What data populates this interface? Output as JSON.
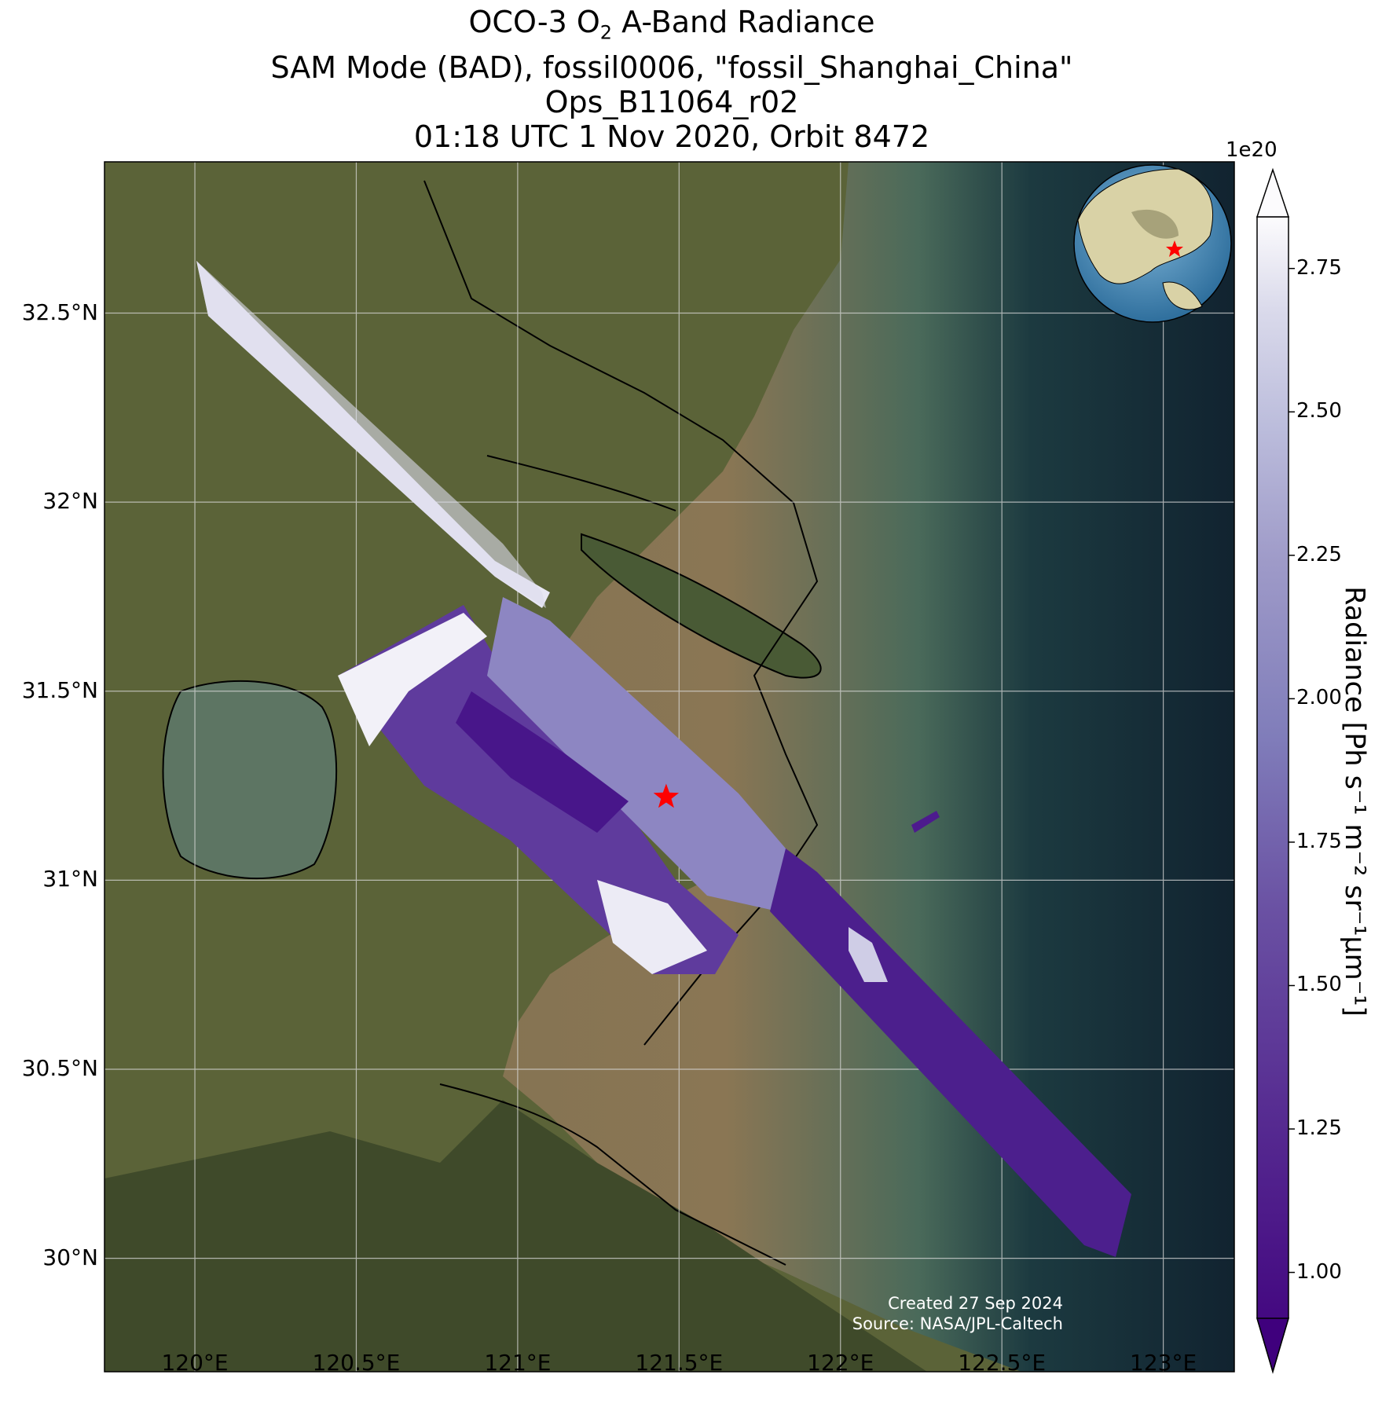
{
  "title": {
    "line1_pre": "OCO-3 O",
    "line1_sub": "2",
    "line1_post": " A-Band Radiance",
    "line2": "SAM Mode (BAD), fossil0006, \"fossil_Shanghai_China\"",
    "line3": "Ops_B11064_r02",
    "line4": "01:18 UTC 1 Nov 2020, Orbit 8472"
  },
  "map": {
    "type": "satellite swath map",
    "lon_ticks": [
      "120°E",
      "120.5°E",
      "121°E",
      "121.5°E",
      "122°E",
      "122.5°E",
      "123°E"
    ],
    "lat_ticks": [
      "32.5°N",
      "32°N",
      "31.5°N",
      "31°N",
      "30.5°N",
      "30°N"
    ],
    "lon_range": [
      119.72,
      123.22
    ],
    "lat_range": [
      29.7,
      32.9
    ],
    "grid": true,
    "target_marker": {
      "name": "fossil_Shanghai_China",
      "lon": 121.46,
      "lat": 31.22,
      "symbol": "star",
      "color": "#ff0000"
    },
    "inset_globe": {
      "position": "top-right",
      "marker_color": "#ff0000"
    }
  },
  "colorbar": {
    "offset_label": "1e20",
    "label": "Radiance [Ph s⁻¹ m⁻² sr⁻¹μm⁻¹]",
    "ticks": [
      "1.00",
      "1.25",
      "1.50",
      "1.75",
      "2.00",
      "2.25",
      "2.50",
      "2.75"
    ],
    "range": [
      0.92,
      2.84
    ],
    "colormap": "Purples_r",
    "extend": "both"
  },
  "credits": {
    "created": "Created 27 Sep 2024",
    "source": "Source: NASA/JPL-Caltech"
  },
  "colors": {
    "land": "#5b6338",
    "sea_sediment": "#8a7552",
    "sea_deep": "#112330",
    "low_radiance": "#3f007d",
    "high_radiance": "#fcfbfd"
  }
}
